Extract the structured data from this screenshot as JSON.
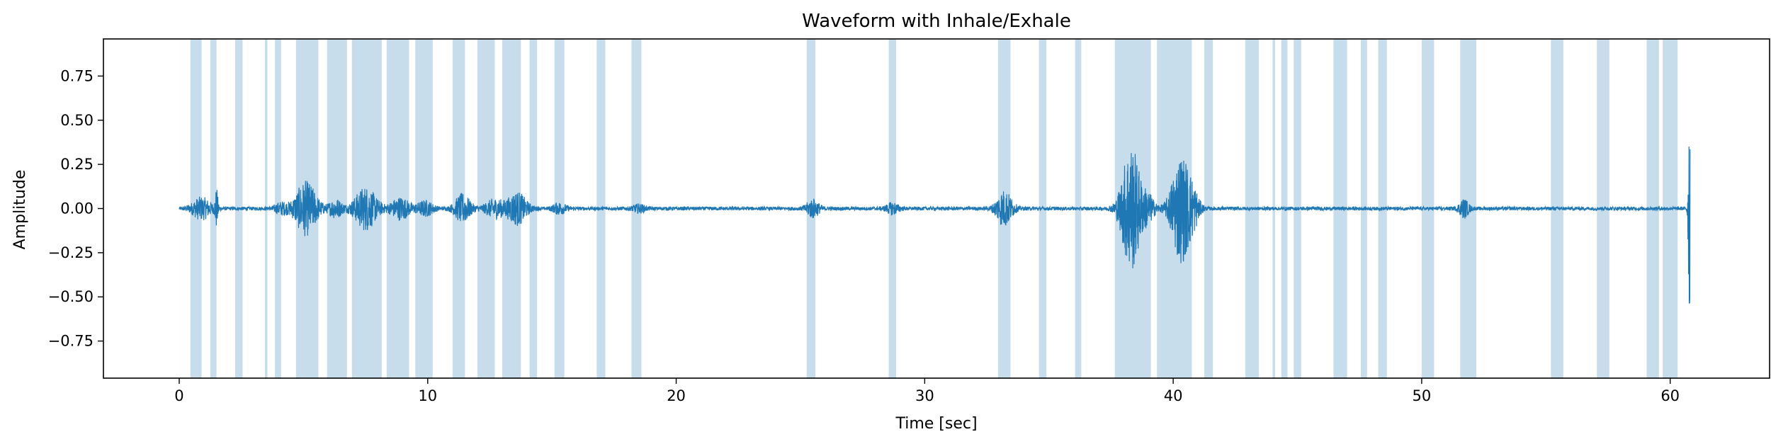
{
  "chart_data": {
    "type": "line",
    "title": "Waveform with Inhale/Exhale",
    "xlabel": "Time [sec]",
    "ylabel": "Amplitude",
    "xlim": [
      -3.05,
      64.0
    ],
    "ylim": [
      -0.96,
      0.96
    ],
    "xticks": [
      0,
      10,
      20,
      30,
      40,
      50,
      60
    ],
    "yticks": [
      0.75,
      0.5,
      0.25,
      0.0,
      -0.25,
      -0.5,
      -0.75
    ],
    "ytick_labels": [
      "0.75",
      "0.50",
      "0.25",
      "0.00",
      "−0.25",
      "−0.50",
      "−0.75"
    ],
    "grid": false,
    "colors": {
      "line": "#1f77b4",
      "span": "#1f77b4",
      "span_alpha": 0.25
    },
    "series": [
      {
        "duration": 60.8,
        "baseline_amplitude": 0.01,
        "bursts": [
          [
            0.9,
            0.3,
            0.06
          ],
          [
            1.5,
            0.05,
            0.1
          ],
          [
            4.1,
            0.2,
            0.03
          ],
          [
            5.1,
            0.35,
            0.15
          ],
          [
            6.3,
            0.2,
            0.05
          ],
          [
            7.5,
            0.35,
            0.12
          ],
          [
            8.9,
            0.3,
            0.06
          ],
          [
            9.9,
            0.25,
            0.04
          ],
          [
            11.4,
            0.25,
            0.08
          ],
          [
            12.7,
            0.3,
            0.05
          ],
          [
            13.6,
            0.3,
            0.09
          ],
          [
            15.3,
            0.2,
            0.03
          ],
          [
            18.5,
            0.2,
            0.02
          ],
          [
            25.5,
            0.2,
            0.05
          ],
          [
            28.7,
            0.2,
            0.03
          ],
          [
            33.2,
            0.25,
            0.1
          ],
          [
            38.3,
            0.3,
            0.36
          ],
          [
            39.0,
            0.2,
            0.07
          ],
          [
            40.3,
            0.3,
            0.3
          ],
          [
            40.8,
            0.2,
            0.08
          ],
          [
            51.7,
            0.15,
            0.05
          ],
          [
            60.8,
            0.05,
            0.85
          ]
        ]
      }
    ],
    "spans": [
      [
        0.45,
        0.9
      ],
      [
        1.25,
        1.5
      ],
      [
        2.25,
        2.55
      ],
      [
        3.45,
        3.55
      ],
      [
        3.85,
        4.1
      ],
      [
        4.7,
        5.6
      ],
      [
        5.95,
        6.75
      ],
      [
        6.95,
        8.15
      ],
      [
        8.35,
        9.25
      ],
      [
        9.5,
        10.2
      ],
      [
        11.0,
        11.5
      ],
      [
        12.0,
        12.7
      ],
      [
        13.0,
        13.75
      ],
      [
        14.1,
        14.4
      ],
      [
        15.1,
        15.5
      ],
      [
        16.8,
        17.15
      ],
      [
        18.2,
        18.6
      ],
      [
        25.25,
        25.6
      ],
      [
        28.55,
        28.85
      ],
      [
        32.95,
        33.45
      ],
      [
        34.6,
        34.9
      ],
      [
        36.05,
        36.3
      ],
      [
        37.65,
        39.1
      ],
      [
        39.35,
        40.75
      ],
      [
        41.25,
        41.6
      ],
      [
        42.9,
        43.45
      ],
      [
        44.0,
        44.1
      ],
      [
        44.35,
        44.6
      ],
      [
        44.85,
        45.15
      ],
      [
        46.45,
        47.0
      ],
      [
        47.55,
        47.8
      ],
      [
        48.25,
        48.6
      ],
      [
        50.0,
        50.5
      ],
      [
        51.55,
        52.2
      ],
      [
        55.2,
        55.7
      ],
      [
        57.05,
        57.55
      ],
      [
        59.05,
        59.55
      ],
      [
        59.7,
        60.3
      ]
    ]
  }
}
